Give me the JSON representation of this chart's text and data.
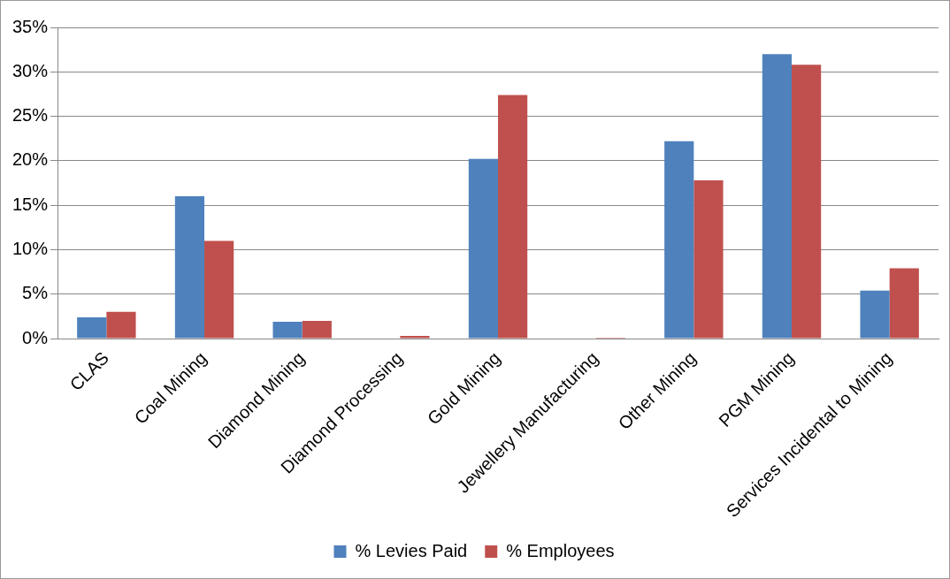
{
  "chart_data": {
    "type": "bar",
    "categories": [
      "CLAS",
      "Coal Mining",
      "Diamond Mining",
      "Diamond Processing",
      "Gold Mining",
      "Jewellery Manufacturing",
      "Other Mining",
      "PGM Mining",
      "Services Incidental to Mining"
    ],
    "series": [
      {
        "name": "% Levies Paid",
        "color": "#4f81bd",
        "values": [
          2.4,
          16.0,
          1.9,
          0,
          20.2,
          0,
          22.2,
          32.0,
          5.4
        ]
      },
      {
        "name": "% Employees",
        "color": "#c0504d",
        "values": [
          3.0,
          11.0,
          2.0,
          0.3,
          27.4,
          0.1,
          17.8,
          30.8,
          7.9
        ]
      }
    ],
    "ylim": [
      0,
      35
    ],
    "yticks": [
      {
        "value": 0,
        "label": "0%"
      },
      {
        "value": 5,
        "label": "5%"
      },
      {
        "value": 10,
        "label": "10%"
      },
      {
        "value": 15,
        "label": "15%"
      },
      {
        "value": 20,
        "label": "20%"
      },
      {
        "value": 25,
        "label": "25%"
      },
      {
        "value": 30,
        "label": "30%"
      },
      {
        "value": 35,
        "label": "35%"
      }
    ],
    "grid": "y",
    "legend": "bottom"
  }
}
